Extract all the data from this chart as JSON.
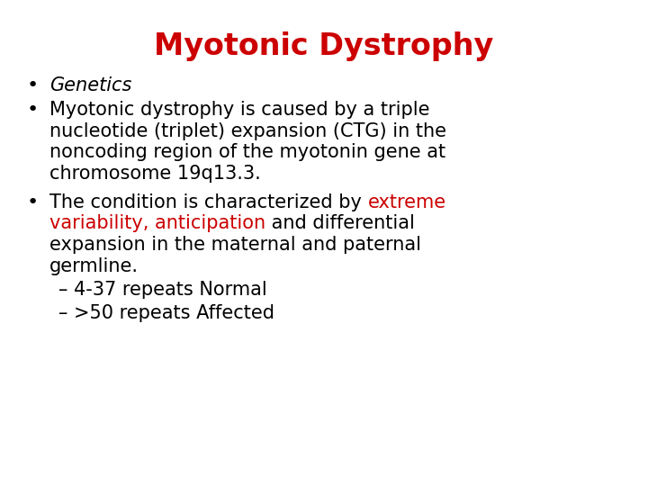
{
  "title": "Myotonic Dystrophy",
  "title_color": "#cc0000",
  "title_fontsize": 24,
  "background_color": "#ffffff",
  "font_family": "Comic Sans MS",
  "text_fontsize": 15,
  "text_color": "#000000",
  "red_color": "#cc0000",
  "bullet": "•",
  "bullet1": "Genetics",
  "bullet2_line1": "Myotonic dystrophy is caused by a triple",
  "bullet2_line2": "nucleotide (triplet) expansion (CTG) in the",
  "bullet2_line3": "noncoding region of the myotonin gene at",
  "bullet2_line4": "chromosome 19q13.3.",
  "b3_black1": "The condition is characterized by ",
  "b3_red1": "extreme",
  "b3_red2": "variability, anticipation",
  "b3_black2": " and differential",
  "b3_black3": "expansion in the maternal and paternal",
  "b3_black4": "germline.",
  "sub1": "– 4-37 repeats Normal",
  "sub2": "– >50 repeats Affected"
}
